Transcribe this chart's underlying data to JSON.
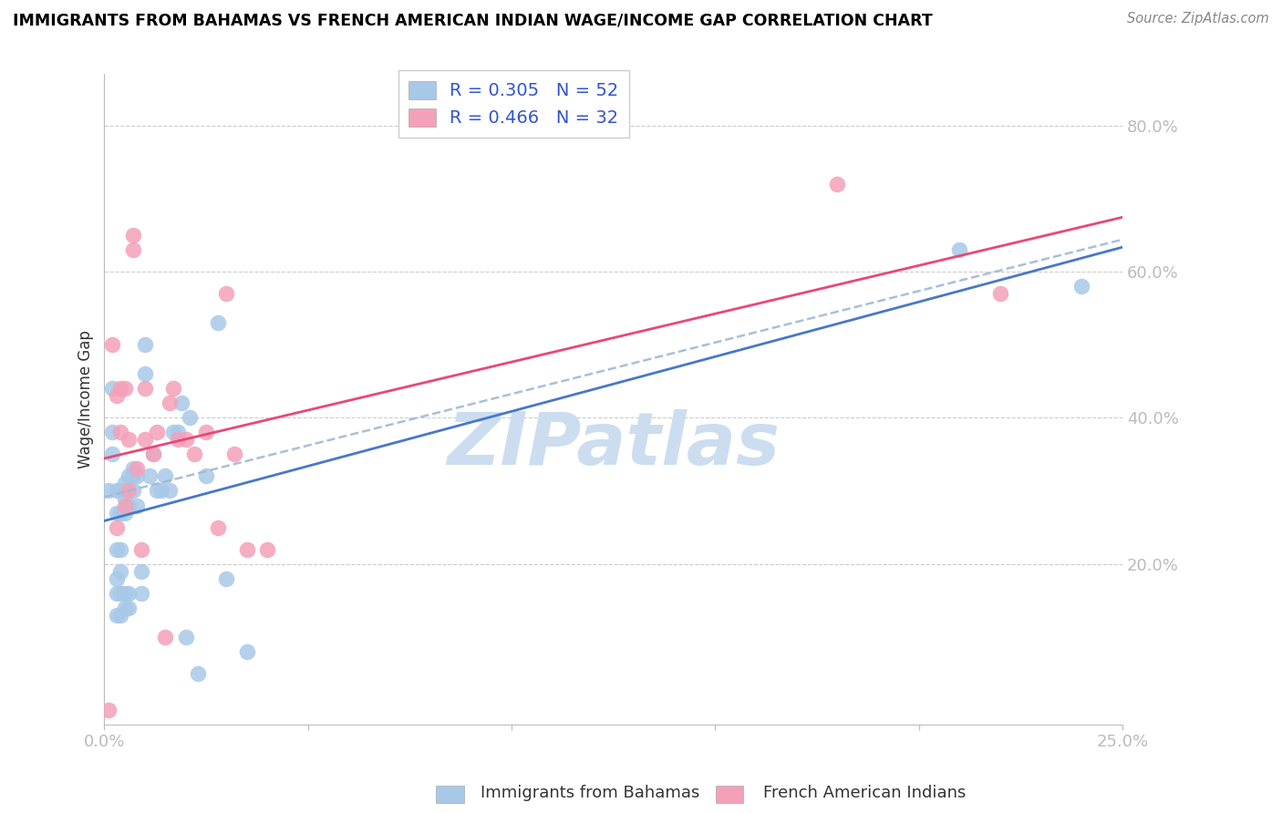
{
  "title": "IMMIGRANTS FROM BAHAMAS VS FRENCH AMERICAN INDIAN WAGE/INCOME GAP CORRELATION CHART",
  "source": "Source: ZipAtlas.com",
  "ylabel": "Wage/Income Gap",
  "xlabel_legend1": "Immigrants from Bahamas",
  "xlabel_legend2": "French American Indians",
  "legend1_R": "0.305",
  "legend1_N": "52",
  "legend2_R": "0.466",
  "legend2_N": "32",
  "xlim": [
    0.0,
    0.25
  ],
  "ylim": [
    -0.02,
    0.87
  ],
  "yticks": [
    0.0,
    0.2,
    0.4,
    0.6,
    0.8
  ],
  "ytick_labels": [
    "",
    "20.0%",
    "40.0%",
    "60.0%",
    "80.0%"
  ],
  "xticks": [
    0.0,
    0.05,
    0.1,
    0.15,
    0.2,
    0.25
  ],
  "xtick_labels": [
    "0.0%",
    "",
    "",
    "",
    "",
    "25.0%"
  ],
  "color_blue": "#a8c8e8",
  "color_pink": "#f4a0b8",
  "color_blue_line": "#4878c8",
  "color_pink_line": "#e84878",
  "color_dashed": "#a0b8d8",
  "watermark": "ZIPatlas",
  "watermark_color": "#ccddf0",
  "blue_x": [
    0.001,
    0.002,
    0.002,
    0.002,
    0.003,
    0.003,
    0.003,
    0.003,
    0.003,
    0.003,
    0.004,
    0.004,
    0.004,
    0.004,
    0.004,
    0.004,
    0.005,
    0.005,
    0.005,
    0.005,
    0.005,
    0.006,
    0.006,
    0.006,
    0.006,
    0.007,
    0.007,
    0.007,
    0.008,
    0.008,
    0.009,
    0.009,
    0.01,
    0.01,
    0.011,
    0.012,
    0.013,
    0.014,
    0.015,
    0.016,
    0.017,
    0.018,
    0.019,
    0.02,
    0.021,
    0.023,
    0.025,
    0.028,
    0.03,
    0.035,
    0.21,
    0.24
  ],
  "blue_y": [
    0.3,
    0.44,
    0.38,
    0.35,
    0.13,
    0.16,
    0.18,
    0.22,
    0.27,
    0.3,
    0.13,
    0.16,
    0.19,
    0.22,
    0.27,
    0.3,
    0.14,
    0.16,
    0.27,
    0.29,
    0.31,
    0.14,
    0.16,
    0.28,
    0.32,
    0.3,
    0.32,
    0.33,
    0.28,
    0.32,
    0.16,
    0.19,
    0.46,
    0.5,
    0.32,
    0.35,
    0.3,
    0.3,
    0.32,
    0.3,
    0.38,
    0.38,
    0.42,
    0.1,
    0.4,
    0.05,
    0.32,
    0.53,
    0.18,
    0.08,
    0.63,
    0.58
  ],
  "pink_x": [
    0.001,
    0.002,
    0.003,
    0.003,
    0.004,
    0.004,
    0.005,
    0.005,
    0.006,
    0.006,
    0.007,
    0.007,
    0.008,
    0.009,
    0.01,
    0.01,
    0.012,
    0.013,
    0.015,
    0.016,
    0.017,
    0.018,
    0.02,
    0.022,
    0.025,
    0.028,
    0.03,
    0.032,
    0.035,
    0.04,
    0.18,
    0.22
  ],
  "pink_y": [
    0.0,
    0.5,
    0.25,
    0.43,
    0.38,
    0.44,
    0.28,
    0.44,
    0.3,
    0.37,
    0.63,
    0.65,
    0.33,
    0.22,
    0.37,
    0.44,
    0.35,
    0.38,
    0.1,
    0.42,
    0.44,
    0.37,
    0.37,
    0.35,
    0.38,
    0.25,
    0.57,
    0.35,
    0.22,
    0.22,
    0.72,
    0.57
  ]
}
